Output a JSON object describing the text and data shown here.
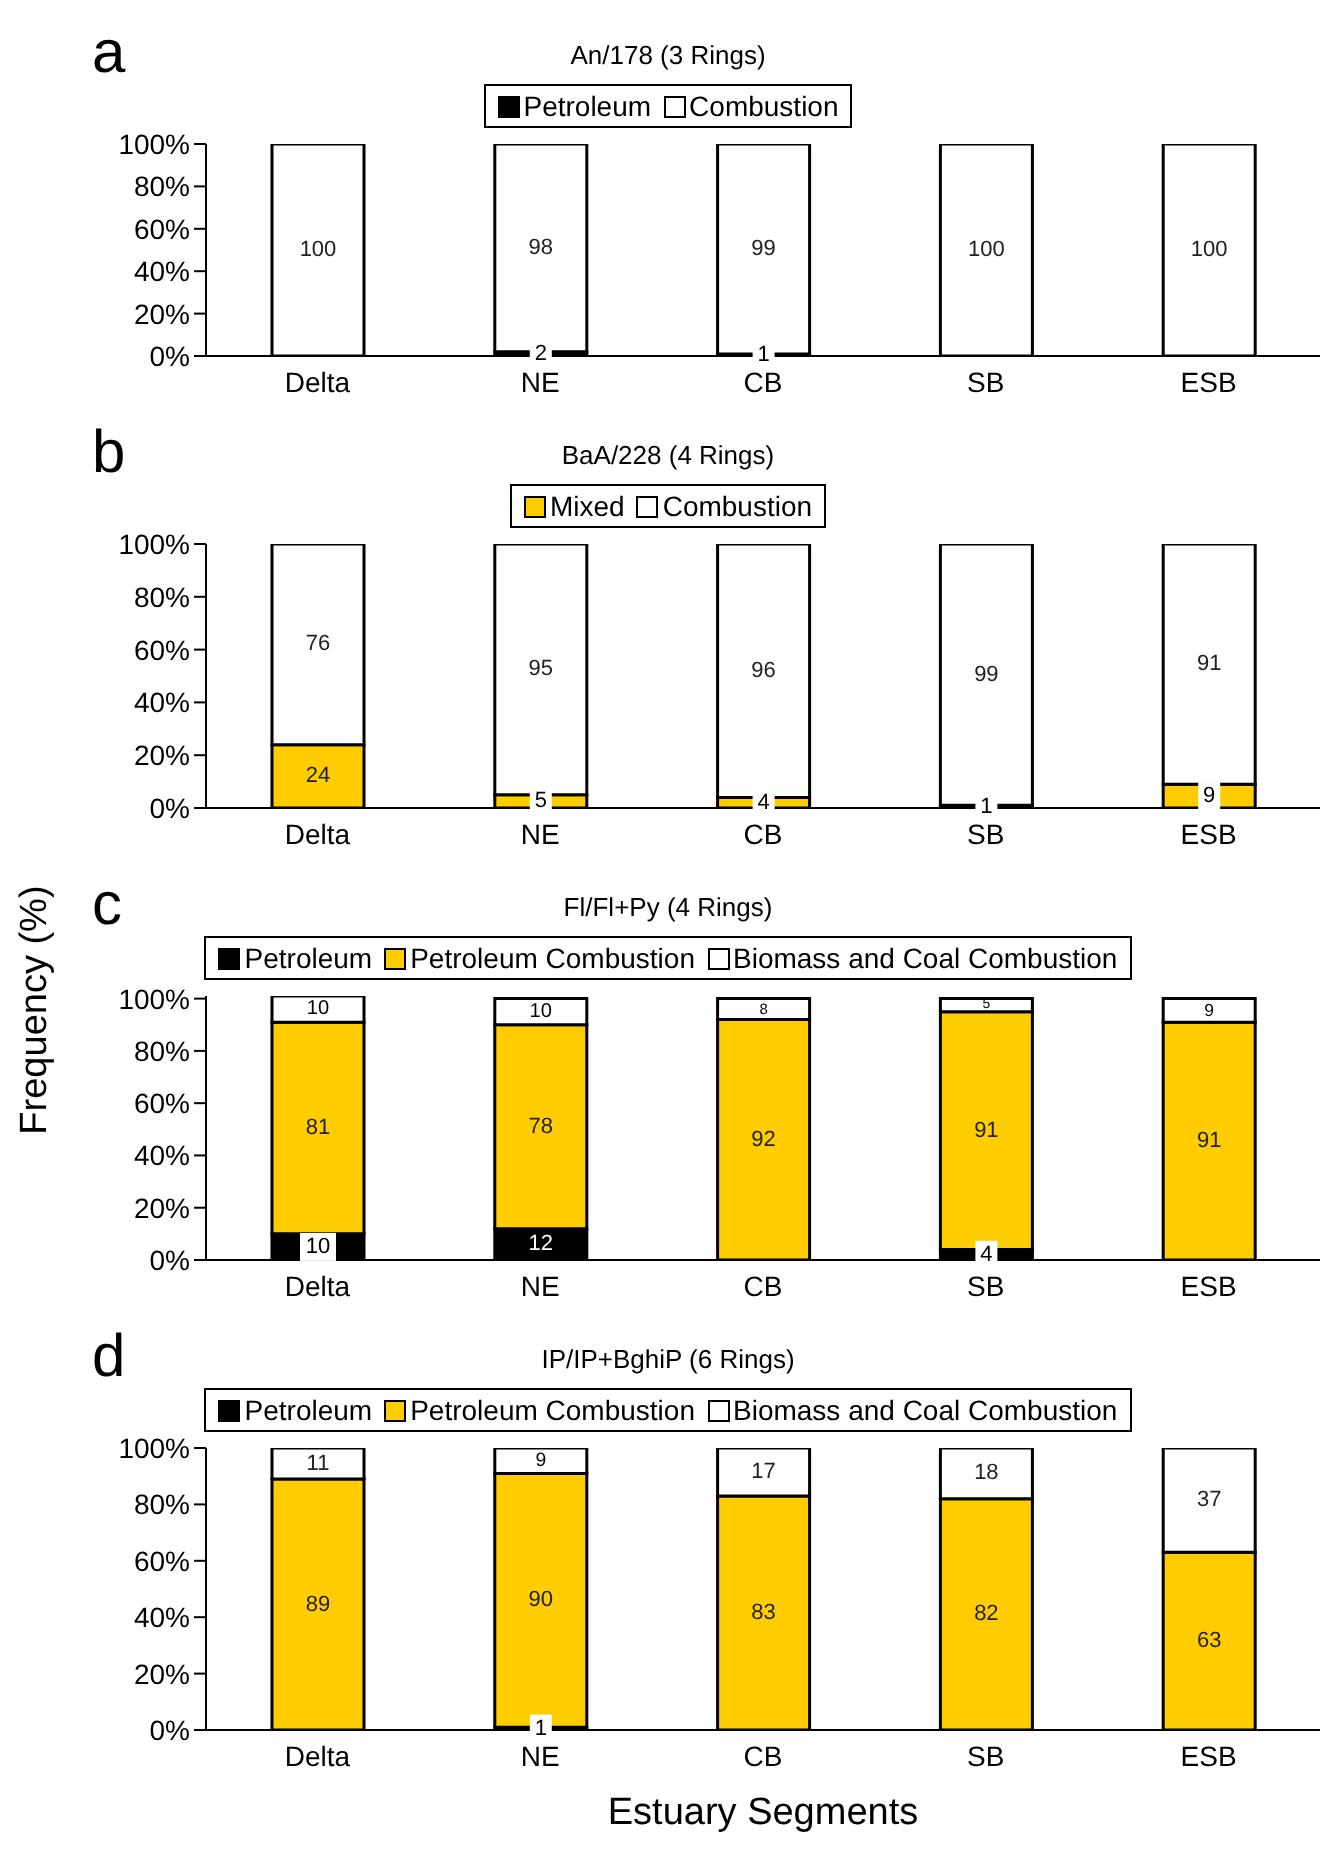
{
  "chart_data": [
    {
      "type": "bar",
      "title": "An/178 (3 Rings)",
      "annotations": [
        "a"
      ],
      "categories": [
        "Delta",
        "NE",
        "CB",
        "SB",
        "ESB"
      ],
      "stacked": true,
      "data_labels": true,
      "legend": "top",
      "ylim": [
        0,
        100
      ],
      "yticks": [
        {
          "value": 0,
          "label": "0%"
        },
        {
          "value": 20,
          "label": "20%"
        },
        {
          "value": 40,
          "label": "40%"
        },
        {
          "value": 60,
          "label": "60%"
        },
        {
          "value": 80,
          "label": "80%"
        },
        {
          "value": 100,
          "label": "100%"
        }
      ],
      "series": [
        {
          "name": "Petroleum",
          "color": "#000000",
          "values": [
            null,
            2,
            1,
            null,
            null
          ]
        },
        {
          "name": "Combustion",
          "color": "#ffffff",
          "values": [
            100,
            98,
            99,
            100,
            100
          ]
        }
      ]
    },
    {
      "type": "bar",
      "title": "BaA/228 (4 Rings)",
      "annotations": [
        "b"
      ],
      "categories": [
        "Delta",
        "NE",
        "CB",
        "SB",
        "ESB"
      ],
      "stacked": true,
      "data_labels": true,
      "legend": "top",
      "ylim": [
        0,
        100
      ],
      "yticks": [
        {
          "value": 0,
          "label": "0%"
        },
        {
          "value": 20,
          "label": "20%"
        },
        {
          "value": 40,
          "label": "40%"
        },
        {
          "value": 60,
          "label": "60%"
        },
        {
          "value": 80,
          "label": "80%"
        },
        {
          "value": 100,
          "label": "100%"
        }
      ],
      "series": [
        {
          "name": "Mixed",
          "color": "#ffcc00",
          "values": [
            24,
            5,
            4,
            1,
            9
          ]
        },
        {
          "name": "Combustion",
          "color": "#ffffff",
          "values": [
            76,
            95,
            96,
            99,
            91
          ]
        }
      ]
    },
    {
      "type": "bar",
      "title": "Fl/Fl+Py (4 Rings)",
      "annotations": [
        "c"
      ],
      "ylabel": "Frequency (%)",
      "categories": [
        "Delta",
        "NE",
        "CB",
        "SB",
        "ESB"
      ],
      "stacked": true,
      "data_labels": true,
      "legend": "top",
      "ylim": [
        0,
        101
      ],
      "yticks": [
        {
          "value": 0,
          "label": "0%"
        },
        {
          "value": 20,
          "label": "20%"
        },
        {
          "value": 40,
          "label": "40%"
        },
        {
          "value": 60,
          "label": "60%"
        },
        {
          "value": 80,
          "label": "80%"
        },
        {
          "value": 100,
          "label": "100%"
        }
      ],
      "series": [
        {
          "name": "Petroleum",
          "color": "#000000",
          "values": [
            10,
            12,
            null,
            4,
            null
          ]
        },
        {
          "name": "Petroleum Combustion",
          "color": "#ffcc00",
          "values": [
            81,
            78,
            92,
            91,
            91
          ]
        },
        {
          "name": "Biomass and Coal Combustion",
          "color": "#ffffff",
          "values": [
            10,
            10,
            8,
            5,
            9
          ]
        }
      ]
    },
    {
      "type": "bar",
      "title": "IP/IP+BghiP (6 Rings)",
      "annotations": [
        "d"
      ],
      "xlabel": "Estuary Segments",
      "categories": [
        "Delta",
        "NE",
        "CB",
        "SB",
        "ESB"
      ],
      "stacked": true,
      "data_labels": true,
      "legend": "top",
      "ylim": [
        0,
        100
      ],
      "yticks": [
        {
          "value": 0,
          "label": "0%"
        },
        {
          "value": 20,
          "label": "20%"
        },
        {
          "value": 40,
          "label": "40%"
        },
        {
          "value": 60,
          "label": "60%"
        },
        {
          "value": 80,
          "label": "80%"
        },
        {
          "value": 100,
          "label": "100%"
        }
      ],
      "series": [
        {
          "name": "Petroleum",
          "color": "#000000",
          "values": [
            null,
            1,
            null,
            null,
            null
          ]
        },
        {
          "name": "Petroleum Combustion",
          "color": "#ffcc00",
          "values": [
            89,
            90,
            83,
            82,
            63
          ]
        },
        {
          "name": "Biomass and Coal Combustion",
          "color": "#ffffff",
          "values": [
            11,
            9,
            17,
            18,
            37
          ]
        }
      ]
    }
  ]
}
